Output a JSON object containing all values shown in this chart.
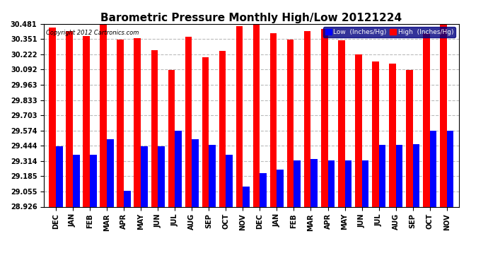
{
  "title": "Barometric Pressure Monthly High/Low 20121224",
  "copyright": "Copyright 2012 Cartronics.com",
  "legend_low": "Low  (Inches/Hg)",
  "legend_high": "High  (Inches/Hg)",
  "months": [
    "DEC",
    "JAN",
    "FEB",
    "MAR",
    "APR",
    "MAY",
    "JUN",
    "JUL",
    "AUG",
    "SEP",
    "OCT",
    "NOV",
    "DEC",
    "JAN",
    "FEB",
    "MAR",
    "APR",
    "MAY",
    "JUN",
    "JUL",
    "AUG",
    "SEP",
    "OCT",
    "NOV"
  ],
  "high_values": [
    30.45,
    30.42,
    30.38,
    30.48,
    30.35,
    30.36,
    30.26,
    30.09,
    30.37,
    30.2,
    30.25,
    30.46,
    30.48,
    30.4,
    30.35,
    30.42,
    30.44,
    30.34,
    30.22,
    30.16,
    30.14,
    30.09,
    30.4,
    30.48
  ],
  "low_values": [
    29.44,
    29.37,
    29.37,
    29.5,
    29.06,
    29.44,
    29.44,
    29.57,
    29.5,
    29.45,
    29.37,
    29.1,
    29.21,
    29.24,
    29.32,
    29.33,
    29.32,
    29.32,
    29.32,
    29.45,
    29.45,
    29.46,
    29.57,
    29.57
  ],
  "ymin": 28.926,
  "ymax": 30.481,
  "yticks": [
    28.926,
    29.055,
    29.185,
    29.314,
    29.444,
    29.574,
    29.703,
    29.833,
    29.963,
    30.092,
    30.222,
    30.351,
    30.481
  ],
  "high_color": "#FF0000",
  "low_color": "#0000FF",
  "bg_color": "#FFFFFF",
  "grid_color": "#BBBBBB",
  "title_fontsize": 11,
  "bar_width": 0.4
}
